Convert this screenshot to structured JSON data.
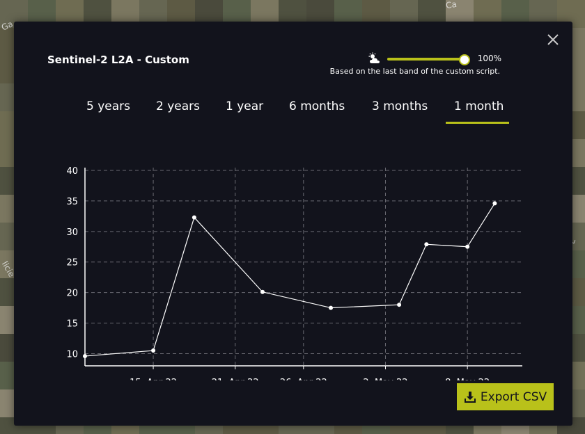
{
  "modal": {
    "title": "Sentinel-2 L2A - Custom",
    "opacity_value": "100%",
    "opacity_fraction": 1.0,
    "opacity_note": "Based on the last band of the custom script.",
    "cloud_icon": "cloud-sun-icon",
    "close_icon": "close-icon"
  },
  "tabs": [
    {
      "label": "5 years",
      "active": false
    },
    {
      "label": "2 years",
      "active": false
    },
    {
      "label": "1 year",
      "active": false
    },
    {
      "label": "6 months",
      "active": false
    },
    {
      "label": "3 months",
      "active": false
    },
    {
      "label": "1 month",
      "active": true
    }
  ],
  "export": {
    "label": "Export CSV",
    "icon": "download-icon"
  },
  "map_labels": [
    "Ga",
    "Ca",
    "licie",
    "L"
  ],
  "colors": {
    "accent": "#b9c11a",
    "modal_bg": "#12131c",
    "line": "#ffffff"
  },
  "chart_data": {
    "type": "line",
    "title": "",
    "xlabel": "",
    "ylabel": "",
    "x_ticks": [
      "15. Apr 22",
      "21. Apr 22",
      "26. Apr 22",
      "2. May 22",
      "8. May 22"
    ],
    "y_ticks": [
      10,
      15,
      20,
      25,
      30,
      35,
      40
    ],
    "ylim": [
      8,
      40
    ],
    "xlim": [
      "2022-04-10",
      "2022-05-11"
    ],
    "grid": true,
    "series": [
      {
        "name": "",
        "x": [
          "2022-04-10",
          "2022-04-15",
          "2022-04-18",
          "2022-04-23",
          "2022-04-28",
          "2022-05-03",
          "2022-05-05",
          "2022-05-08",
          "2022-05-10"
        ],
        "y": [
          9.6,
          10.5,
          32.3,
          20.1,
          17.5,
          18.0,
          27.9,
          27.5,
          34.6
        ]
      }
    ]
  }
}
